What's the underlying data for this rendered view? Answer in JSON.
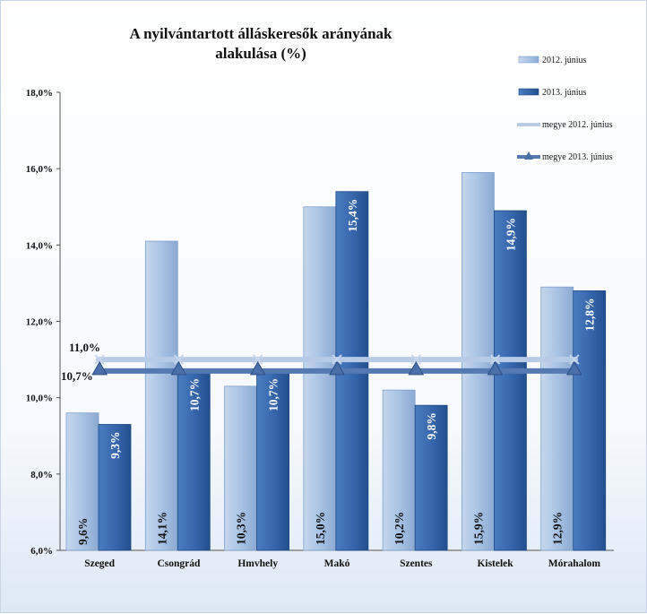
{
  "chart_data": {
    "type": "bar",
    "title": "A nyilvántartott álláskeresők arányának\nalakulása (%)",
    "categories": [
      "Szeged",
      "Csongrád",
      "Hmvhely",
      "Makó",
      "Szentes",
      "Kistelek",
      "Mórahalom"
    ],
    "series": [
      {
        "name": "2012. június",
        "values": [
          9.6,
          14.1,
          10.3,
          15.0,
          10.2,
          15.9,
          12.9
        ],
        "labels": [
          "9,6%",
          "14,1%",
          "10,3%",
          "15,0%",
          "10,2%",
          "15,9%",
          "12,9%"
        ],
        "color": "#a9c3e4"
      },
      {
        "name": "2013. június",
        "values": [
          9.3,
          10.7,
          10.7,
          15.4,
          9.8,
          14.9,
          12.8
        ],
        "labels": [
          "9,3%",
          "10,7%",
          "10,7%",
          "15,4%",
          "9,8%",
          "14,9%",
          "12,8%"
        ],
        "color": "#3768ae"
      }
    ],
    "reference_lines": [
      {
        "name": "megye 2012. június",
        "value": 11.0,
        "label": "11,0%",
        "color": "#b8cbe6",
        "marker": "x"
      },
      {
        "name": "megye 2013. június",
        "value": 10.7,
        "label": "10,7%",
        "color": "#5579b3",
        "marker": "triangle"
      }
    ],
    "ylim": [
      6.0,
      18.0
    ],
    "yticks": [
      "6,0%",
      "8,0%",
      "10,0%",
      "12,0%",
      "14,0%",
      "16,0%",
      "18,0%"
    ],
    "grid": false,
    "legend": "top-right"
  }
}
